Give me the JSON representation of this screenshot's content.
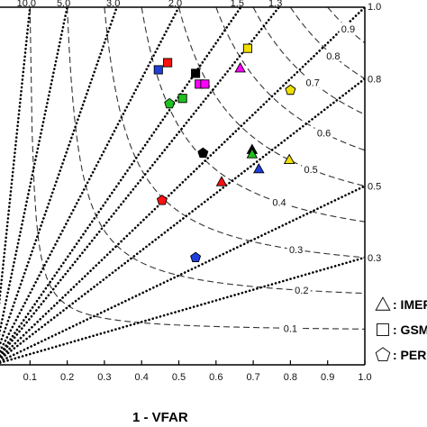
{
  "chart_data": {
    "type": "scatter",
    "title": "",
    "xlabel": "1 - VFAR",
    "ylabel": "",
    "xlim": [
      0,
      1
    ],
    "ylim": [
      0,
      1
    ],
    "x_ticks": [
      "0.1",
      "0.2",
      "0.3",
      "0.4",
      "0.5",
      "0.6",
      "0.7",
      "0.8",
      "0.9",
      "1.0"
    ],
    "y_ticks_right": [
      "1.0",
      "0.8",
      "0.5",
      "0.3"
    ],
    "bias_lines": [
      {
        "value": 10.0,
        "label": "10.0"
      },
      {
        "value": 5.0,
        "label": "5.0"
      },
      {
        "value": 3.0,
        "label": "3.0"
      },
      {
        "value": 2.0,
        "label": "2.0"
      },
      {
        "value": 1.5,
        "label": "1.5"
      },
      {
        "value": 1.3,
        "label": "1.3"
      },
      {
        "value": 1.0,
        "label": ""
      },
      {
        "value": 0.8,
        "label": ""
      },
      {
        "value": 0.5,
        "label": ""
      },
      {
        "value": 0.3,
        "label": ""
      }
    ],
    "csi_contours": [
      {
        "value": 0.1,
        "label": "0.1"
      },
      {
        "value": 0.2,
        "label": "0.2"
      },
      {
        "value": 0.3,
        "label": "0.3"
      },
      {
        "value": 0.4,
        "label": "0.4"
      },
      {
        "value": 0.5,
        "label": "0.5"
      },
      {
        "value": 0.6,
        "label": "0.6"
      },
      {
        "value": 0.7,
        "label": "0.7"
      },
      {
        "value": 0.8,
        "label": "0.8"
      },
      {
        "value": 0.9,
        "label": "0.9"
      }
    ],
    "legend": {
      "placement": "right",
      "entries": [
        {
          "shape": "triangle",
          "label": "IMERG"
        },
        {
          "shape": "square",
          "label": "GSMaP"
        },
        {
          "shape": "pentagon",
          "label": "PERSIANN"
        }
      ]
    },
    "points": [
      {
        "shape": "square",
        "x": 0.445,
        "y": 0.825,
        "color": "#1f3fdc"
      },
      {
        "shape": "square",
        "x": 0.47,
        "y": 0.845,
        "color": "#ff1010"
      },
      {
        "shape": "square",
        "x": 0.545,
        "y": 0.815,
        "color": "#000000"
      },
      {
        "shape": "square",
        "x": 0.685,
        "y": 0.885,
        "color": "#f0e000"
      },
      {
        "shape": "square",
        "x": 0.555,
        "y": 0.785,
        "color": "#ff00ff"
      },
      {
        "shape": "square",
        "x": 0.57,
        "y": 0.785,
        "color": "#ff00ff"
      },
      {
        "shape": "square",
        "x": 0.51,
        "y": 0.745,
        "color": "#20c020"
      },
      {
        "shape": "triangle",
        "x": 0.665,
        "y": 0.83,
        "color": "#ff00ff"
      },
      {
        "shape": "triangle",
        "x": 0.697,
        "y": 0.602,
        "color": "#000000"
      },
      {
        "shape": "triangle",
        "x": 0.697,
        "y": 0.59,
        "color": "#20c020"
      },
      {
        "shape": "triangle",
        "x": 0.797,
        "y": 0.574,
        "color": "#f0e000"
      },
      {
        "shape": "triangle",
        "x": 0.715,
        "y": 0.548,
        "color": "#1f3fdc"
      },
      {
        "shape": "triangle",
        "x": 0.615,
        "y": 0.512,
        "color": "#ff1010"
      },
      {
        "shape": "pentagon",
        "x": 0.8,
        "y": 0.768,
        "color": "#f0e000"
      },
      {
        "shape": "pentagon",
        "x": 0.475,
        "y": 0.73,
        "color": "#20c020"
      },
      {
        "shape": "pentagon",
        "x": 0.565,
        "y": 0.592,
        "color": "#000000"
      },
      {
        "shape": "pentagon",
        "x": 0.455,
        "y": 0.46,
        "color": "#ff1010"
      },
      {
        "shape": "pentagon",
        "x": 0.545,
        "y": 0.3,
        "color": "#1f3fdc"
      }
    ]
  }
}
